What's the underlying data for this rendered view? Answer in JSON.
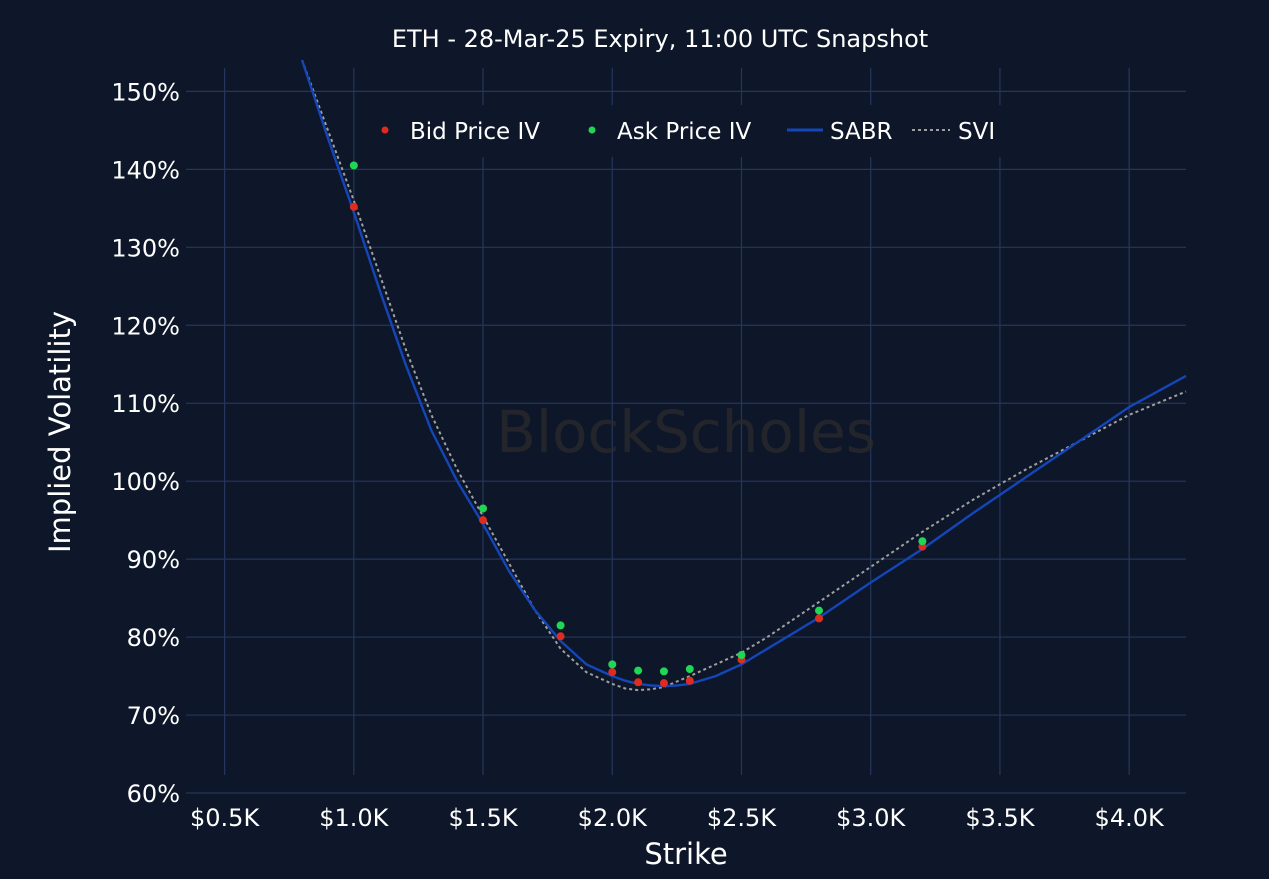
{
  "chart_data": {
    "type": "scatter",
    "title": "ETH - 28-Mar-25 Expiry, 11:00 UTC Snapshot",
    "xlabel": "Strike",
    "ylabel": "Implied Volatility",
    "watermark": "BlockScholes",
    "xlim": [
      250,
      4220
    ],
    "ylim": [
      60,
      153
    ],
    "xticks": [
      500,
      1000,
      1500,
      2000,
      2500,
      3000,
      3500,
      4000
    ],
    "xtick_labels": [
      "$0.5K",
      "$1.0K",
      "$1.5K",
      "$2.0K",
      "$2.5K",
      "$3.0K",
      "$3.5K",
      "$4.0K"
    ],
    "yticks": [
      60,
      70,
      80,
      90,
      100,
      110,
      120,
      130,
      140,
      150
    ],
    "ytick_labels": [
      "60%",
      "70%",
      "80%",
      "90%",
      "100%",
      "110%",
      "120%",
      "130%",
      "140%",
      "150%"
    ],
    "grid": true,
    "legend_position": "top",
    "series": [
      {
        "name": "Bid Price IV",
        "kind": "markers",
        "color": "#e02b1f",
        "x": [
          1000,
          1500,
          1800,
          2000,
          2100,
          2200,
          2300,
          2500,
          2800,
          3200
        ],
        "y": [
          135.2,
          95.0,
          80.1,
          75.5,
          74.2,
          74.1,
          74.4,
          77.1,
          82.4,
          91.6
        ]
      },
      {
        "name": "Ask Price IV",
        "kind": "markers",
        "color": "#20d655",
        "x": [
          1000,
          1500,
          1800,
          2000,
          2100,
          2200,
          2300,
          2500,
          2800,
          3200
        ],
        "y": [
          140.5,
          96.5,
          81.5,
          76.5,
          75.7,
          75.6,
          75.9,
          77.7,
          83.4,
          92.3
        ]
      },
      {
        "name": "SABR",
        "kind": "line",
        "color": "#1446b8",
        "x": [
          800,
          900,
          1000,
          1100,
          1200,
          1300,
          1400,
          1500,
          1600,
          1700,
          1800,
          1900,
          2000,
          2050,
          2100,
          2150,
          2200,
          2250,
          2300,
          2400,
          2500,
          2600,
          2800,
          3000,
          3200,
          3400,
          3600,
          3800,
          4000,
          4220
        ],
        "y": [
          154.0,
          144.0,
          134.5,
          124.5,
          115.0,
          106.5,
          100.0,
          94.5,
          88.5,
          83.5,
          79.5,
          76.5,
          75.0,
          74.4,
          74.0,
          73.8,
          73.7,
          73.8,
          74.0,
          75.0,
          76.5,
          78.5,
          82.5,
          87.0,
          91.3,
          96.0,
          100.5,
          105.0,
          109.5,
          113.5
        ]
      },
      {
        "name": "SVI",
        "kind": "line",
        "dash": true,
        "color": "#a0a0a0",
        "x": [
          800,
          900,
          1000,
          1100,
          1200,
          1300,
          1400,
          1500,
          1600,
          1700,
          1800,
          1900,
          2000,
          2050,
          2100,
          2150,
          2200,
          2250,
          2300,
          2400,
          2500,
          2600,
          2800,
          3000,
          3200,
          3400,
          3600,
          3800,
          4000,
          4220
        ],
        "y": [
          154.0,
          145.0,
          136.0,
          126.5,
          117.0,
          108.5,
          101.5,
          95.5,
          89.5,
          83.5,
          78.5,
          75.5,
          74.0,
          73.4,
          73.2,
          73.3,
          73.6,
          74.3,
          75.0,
          76.5,
          78.0,
          80.0,
          84.5,
          89.0,
          93.5,
          97.7,
          101.5,
          105.0,
          108.5,
          111.5
        ]
      }
    ]
  }
}
